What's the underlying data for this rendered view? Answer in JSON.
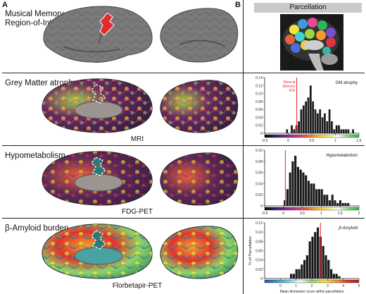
{
  "panels": {
    "a_label": "A",
    "b_label": "B"
  },
  "rows": [
    {
      "title_line1": "Musical Memory",
      "title_line2": "Region-of-Interest",
      "modality": ""
    },
    {
      "title_line1": "Grey Matter atrophy",
      "title_line2": "",
      "modality": "MRI"
    },
    {
      "title_line1": "Hypometabolism",
      "title_line2": "",
      "modality": "FDG-PET"
    },
    {
      "title_line1": "β-Amyloid burden",
      "title_line2": "",
      "modality": "Florbetapir-PET"
    }
  ],
  "parcellation_title": "Parcellation",
  "histograms_shared": {
    "ylabel": "% of Parcellation",
    "xlabel": "Mean biomarker score within parcellation",
    "roi_label_lines": [
      "Musical",
      "Memory",
      "ROI"
    ],
    "roi_line_color": "#e8333a"
  },
  "chart_data": [
    {
      "type": "bar",
      "title": "GM atrophy",
      "xlim": [
        -0.5,
        1.5
      ],
      "xticks": [
        "-0.5",
        "0",
        "0.5",
        "1",
        "1.5"
      ],
      "ylim": [
        0,
        0.14
      ],
      "yticks": [
        "0",
        "0.02",
        "0.04",
        "0.06",
        "0.08",
        "0.10",
        "0.12",
        "0.14"
      ],
      "bin_width": 0.05,
      "bin_starts": [
        -0.05,
        0.0,
        0.05,
        0.1,
        0.15,
        0.2,
        0.25,
        0.3,
        0.35,
        0.4,
        0.45,
        0.5,
        0.55,
        0.6,
        0.65,
        0.7,
        0.75,
        0.8,
        0.85,
        0.9,
        0.95,
        1.0,
        1.05,
        1.1,
        1.15,
        1.2,
        1.25,
        1.3,
        1.35
      ],
      "values": [
        0.01,
        0.0,
        0.02,
        0.01,
        0.02,
        0.03,
        0.06,
        0.07,
        0.08,
        0.09,
        0.12,
        0.08,
        0.06,
        0.05,
        0.06,
        0.04,
        0.05,
        0.03,
        0.06,
        0.03,
        0.01,
        0.02,
        0.02,
        0.01,
        0.01,
        0.01,
        0.01,
        0.0,
        0.01
      ],
      "roi_x": 0.18,
      "colorbar": [
        "#000000",
        "#3b1f6e",
        "#7e2a8c",
        "#c0398a",
        "#e7623c",
        "#f5b72a",
        "#fbe95a",
        "#ffffff",
        "#7fd97a",
        "#2eb55a"
      ]
    },
    {
      "type": "bar",
      "title": "Hypometabolism",
      "xlim": [
        -0.5,
        2
      ],
      "xticks": [
        "-0.5",
        "0",
        "0.5",
        "1",
        "1.5",
        "2"
      ],
      "ylim": [
        0,
        0.1
      ],
      "yticks": [
        "0",
        "0.02",
        "0.04",
        "0.06",
        "0.08",
        "0.10"
      ],
      "bin_width": 0.07,
      "bin_starts": [
        0.0,
        0.07,
        0.14,
        0.21,
        0.28,
        0.35,
        0.42,
        0.49,
        0.56,
        0.63,
        0.7,
        0.77,
        0.84,
        0.91,
        0.98,
        1.05,
        1.12,
        1.19,
        1.26,
        1.33,
        1.4,
        1.47,
        1.54,
        1.61,
        1.68
      ],
      "values": [
        0.01,
        0.03,
        0.06,
        0.08,
        0.09,
        0.07,
        0.065,
        0.06,
        0.055,
        0.045,
        0.04,
        0.04,
        0.03,
        0.03,
        0.03,
        0.02,
        0.02,
        0.01,
        0.02,
        0.01,
        0.005,
        0.01,
        0.005,
        0.005,
        0.005
      ],
      "roi_x": 0.05,
      "colorbar": [
        "#000000",
        "#3b1f6e",
        "#7e2a8c",
        "#c0398a",
        "#e7623c",
        "#f5b72a",
        "#fbe95a",
        "#ffffff",
        "#7fd97a",
        "#2eb55a"
      ]
    },
    {
      "type": "bar",
      "title": "β-Amyloid",
      "xlim": [
        -1,
        5
      ],
      "xticks": [
        "0",
        "1",
        "2",
        "3",
        "4",
        "5"
      ],
      "ylim": [
        0,
        0.12
      ],
      "yticks": [
        "0",
        "0.02",
        "0.04",
        "0.06",
        "0.08",
        "0.10",
        "0.12"
      ],
      "bin_width": 0.17,
      "bin_starts": [
        0.6,
        0.77,
        0.94,
        1.11,
        1.28,
        1.45,
        1.62,
        1.79,
        1.96,
        2.13,
        2.3,
        2.47,
        2.64,
        2.81,
        2.98,
        3.15,
        3.32,
        3.49,
        3.66
      ],
      "values": [
        0.01,
        0.01,
        0.02,
        0.02,
        0.03,
        0.04,
        0.05,
        0.08,
        0.09,
        0.1,
        0.11,
        0.09,
        0.07,
        0.05,
        0.04,
        0.02,
        0.01,
        0.01,
        0.005
      ],
      "roi_x": 2.55,
      "colorbar": [
        "#1e4fa3",
        "#3b8fd1",
        "#6fd0e0",
        "#ffffff",
        "#8fd36a",
        "#f6e84b",
        "#f5a02d",
        "#e2332d",
        "#b31d1d"
      ]
    }
  ]
}
